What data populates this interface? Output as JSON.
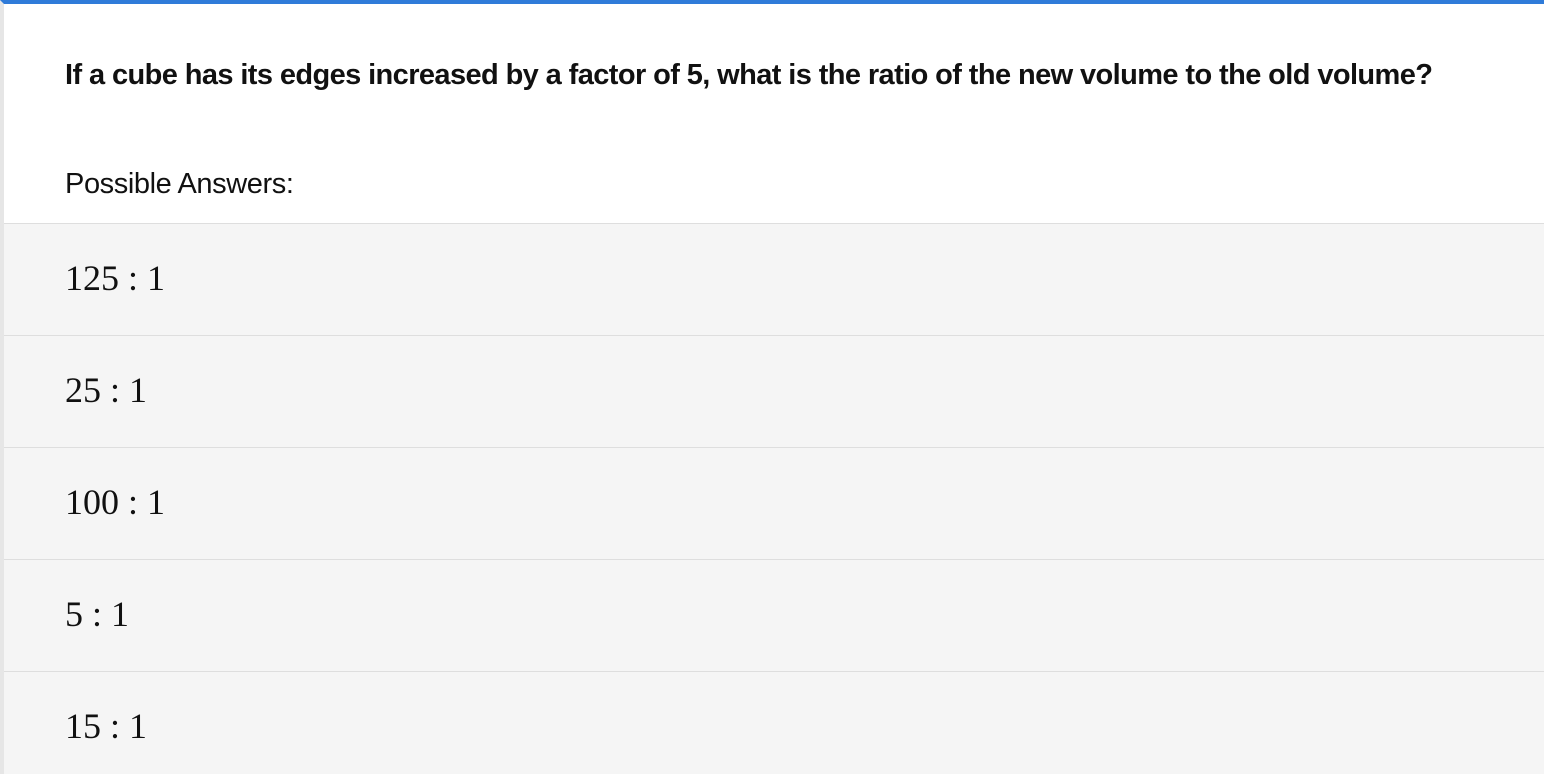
{
  "question": {
    "text": "If a cube has its edges increased by a factor of 5, what is the ratio of the new volume to the old volume?"
  },
  "answers_label": "Possible Answers:",
  "answers": [
    {
      "text": "125 : 1"
    },
    {
      "text": "25 : 1"
    },
    {
      "text": "100 : 1"
    },
    {
      "text": "5 : 1"
    },
    {
      "text": "15 : 1"
    }
  ],
  "colors": {
    "accent": "#2f7bd9",
    "answer_bg": "#f5f5f5",
    "divider": "#dedede",
    "text": "#111111"
  }
}
